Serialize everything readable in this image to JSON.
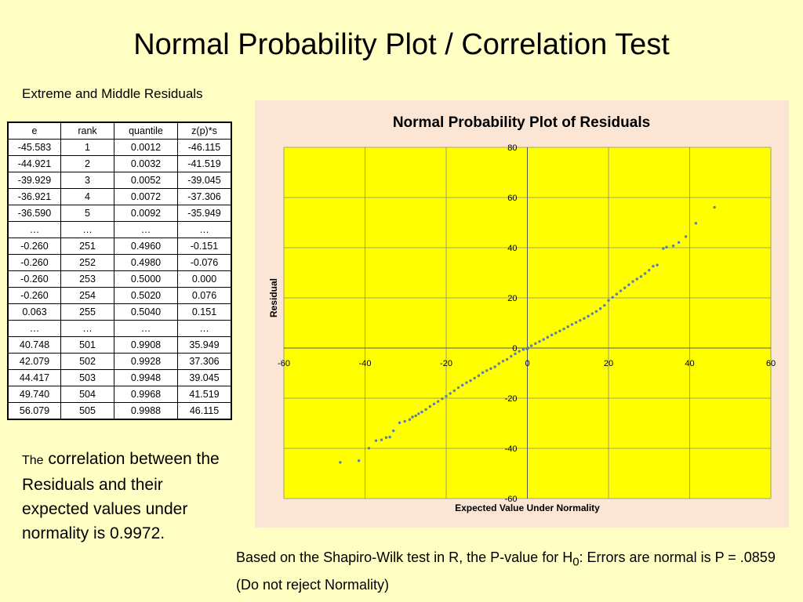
{
  "slide": {
    "title": "Normal Probability Plot / Correlation Test",
    "table_caption": "Extreme and Middle Residuals",
    "correlation_lead": "The",
    "correlation_text": "correlation between the Residuals and their expected values under normality is 0.9972.",
    "sw_text_before_sub": "Based on the Shapiro-Wilk test in R, the P-value for H",
    "sw_subscript": "0",
    "sw_text_after_sub": ": Errors are normal is P = .0859  (Do not reject Normality)"
  },
  "table": {
    "headers": [
      "e",
      "rank",
      "quantile",
      "z(p)*s"
    ],
    "rows": [
      [
        "-45.583",
        "1",
        "0.0012",
        "-46.115"
      ],
      [
        "-44.921",
        "2",
        "0.0032",
        "-41.519"
      ],
      [
        "-39.929",
        "3",
        "0.0052",
        "-39.045"
      ],
      [
        "-36.921",
        "4",
        "0.0072",
        "-37.306"
      ],
      [
        "-36.590",
        "5",
        "0.0092",
        "-35.949"
      ],
      [
        "…",
        "…",
        "…",
        "…"
      ],
      [
        "-0.260",
        "251",
        "0.4960",
        "-0.151"
      ],
      [
        "-0.260",
        "252",
        "0.4980",
        "-0.076"
      ],
      [
        "-0.260",
        "253",
        "0.5000",
        "0.000"
      ],
      [
        "-0.260",
        "254",
        "0.5020",
        "0.076"
      ],
      [
        "0.063",
        "255",
        "0.5040",
        "0.151"
      ],
      [
        "…",
        "…",
        "…",
        "…"
      ],
      [
        "40.748",
        "501",
        "0.9908",
        "35.949"
      ],
      [
        "42.079",
        "502",
        "0.9928",
        "37.306"
      ],
      [
        "44.417",
        "503",
        "0.9948",
        "39.045"
      ],
      [
        "49.740",
        "504",
        "0.9968",
        "41.519"
      ],
      [
        "56.079",
        "505",
        "0.9988",
        "46.115"
      ]
    ]
  },
  "chart_data": {
    "type": "scatter",
    "title": "Normal Probability Plot of Residuals",
    "xlabel": "Expected Value Under Normality",
    "ylabel": "Residual",
    "xlim": [
      -60,
      60
    ],
    "ylim": [
      -60,
      80
    ],
    "xticks": [
      -60,
      -40,
      -20,
      0,
      20,
      40,
      60
    ],
    "yticks": [
      -60,
      -40,
      -20,
      0,
      20,
      40,
      60,
      80
    ],
    "grid": true,
    "colors": {
      "panel": "#fbe6d6",
      "plot_area": "#ffff00",
      "marker": "#5b7fa8",
      "grid": "#888888"
    },
    "series": [
      {
        "x": [
          -46.115,
          -41.519,
          -39.045,
          -37.306,
          -35.949,
          -34.8,
          -33.9,
          -33.0,
          -31.5,
          -30.2,
          -29.0,
          -28.3,
          -27.5,
          -26.8,
          -26.0,
          -25.0,
          -24.0,
          -23.0,
          -22.0,
          -21.0,
          -20.0,
          -19.0,
          -18.0,
          -17.0,
          -16.0,
          -15.0,
          -14.0,
          -13.0,
          -12.0,
          -11.0,
          -10.0,
          -9.0,
          -8.0,
          -7.0,
          -6.0,
          -5.0,
          -4.0,
          -3.0,
          -2.0,
          -1.0,
          -0.151,
          -0.076,
          0.0,
          0.076,
          0.151,
          1.0,
          2.0,
          3.0,
          4.0,
          5.0,
          6.0,
          7.0,
          8.0,
          9.0,
          10.0,
          11.0,
          12.0,
          13.0,
          14.0,
          15.0,
          16.0,
          17.0,
          18.0,
          19.0,
          20.0,
          21.0,
          22.0,
          23.0,
          24.0,
          25.0,
          26.0,
          27.0,
          28.0,
          29.0,
          30.0,
          31.0,
          32.0,
          33.5,
          34.3,
          35.949,
          37.306,
          39.045,
          41.519,
          46.115
        ],
        "y": [
          -45.583,
          -44.921,
          -39.929,
          -36.921,
          -36.59,
          -35.7,
          -35.5,
          -33.0,
          -29.8,
          -29.2,
          -28.5,
          -27.5,
          -27.0,
          -26.2,
          -25.5,
          -24.5,
          -23.3,
          -22.3,
          -21.3,
          -20.2,
          -19.2,
          -18.1,
          -17.0,
          -15.8,
          -14.8,
          -13.8,
          -13.0,
          -12.0,
          -11.0,
          -9.8,
          -9.0,
          -8.2,
          -7.5,
          -6.2,
          -5.2,
          -4.5,
          -3.3,
          -2.3,
          -1.3,
          -0.6,
          -0.26,
          -0.26,
          -0.26,
          -0.26,
          0.063,
          0.9,
          1.8,
          2.6,
          3.4,
          4.3,
          5.2,
          6.0,
          6.8,
          7.6,
          8.5,
          9.4,
          10.2,
          11.0,
          11.8,
          12.7,
          13.7,
          14.6,
          15.7,
          17.0,
          19.0,
          20.2,
          21.5,
          22.8,
          24.0,
          25.2,
          26.5,
          27.5,
          28.5,
          29.7,
          31.0,
          32.6,
          33.1,
          39.7,
          40.2,
          40.748,
          42.079,
          44.417,
          49.74,
          56.079
        ]
      }
    ]
  }
}
